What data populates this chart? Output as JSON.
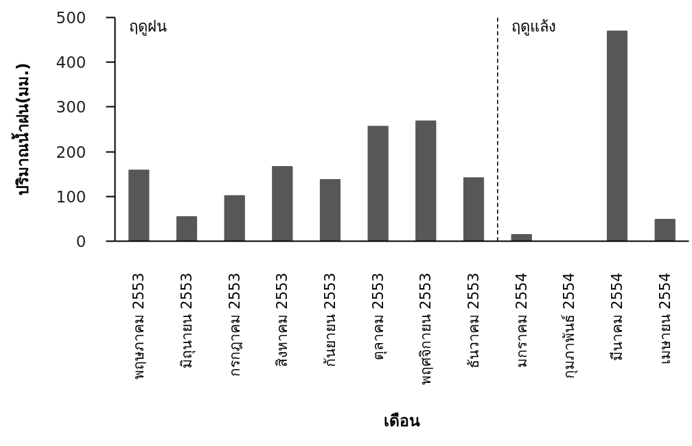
{
  "chart_data": {
    "type": "bar",
    "xlabel": "เดือน",
    "ylabel": "ปริมาณน้ำฝน(มม.)",
    "categories": [
      "พฤษภาคม 2553",
      "มิถุนายน 2553",
      "กรกฎาคม 2553",
      "สิงหาคม 2553",
      "กันยายน 2553",
      "ตุลาคม 2553",
      "พฤศจิกายน 2553",
      "ธันวาคม 2553",
      "มกราคม 2554",
      "กุมภาพันธ์ 2554",
      "มีนาคม 2554",
      "เมษายน 2554"
    ],
    "values": [
      159,
      55,
      102,
      167,
      138,
      257,
      269,
      142,
      15,
      0,
      470,
      49
    ],
    "color": "#575757",
    "ylim": [
      0,
      500
    ],
    "yticks": [
      0,
      100,
      200,
      300,
      400,
      500
    ],
    "annotations": [
      "ฤดูฝน",
      "ฤดูแล้ง"
    ]
  }
}
